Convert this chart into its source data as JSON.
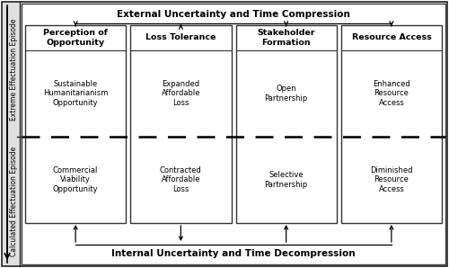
{
  "figsize": [
    5.0,
    2.98
  ],
  "dpi": 100,
  "bg_outer": "#d8d8d8",
  "bg_inner": "#ffffff",
  "bg_lower": "#e8e8e8",
  "top_label": "External Uncertainty and Time Compression",
  "bottom_label": "Internal Uncertainty and Time Decompression",
  "left_label_top": "Extreme Effectuation Episode",
  "left_label_bottom": "Calculated Effectuation Episode",
  "boxes": [
    {
      "title": "Perception of\nOpportunity",
      "top_text": "Sustainable\nHumanitarianism\nOpportunity",
      "bottom_text": "Commercial\nViability\nOpportunity"
    },
    {
      "title": "Loss Tolerance",
      "top_text": "Expanded\nAffordable\nLoss",
      "bottom_text": "Contracted\nAffordable\nLoss"
    },
    {
      "title": "Stakeholder\nFormation",
      "top_text": "Open\nPartnership",
      "bottom_text": "Selective\nPartnership"
    },
    {
      "title": "Resource Access",
      "top_text": "Enhanced\nResource\nAccess",
      "bottom_text": "Diminished\nResource\nAccess"
    }
  ],
  "arrow_top_connections": [
    {
      "from": 0,
      "direction": "down"
    },
    {
      "from": 1,
      "direction": "up"
    },
    {
      "from": 2,
      "direction": "down"
    },
    {
      "from": 3,
      "direction": "down"
    }
  ],
  "arrow_bot_connections": [
    {
      "from": 0,
      "direction": "up"
    },
    {
      "from": 1,
      "direction": "down"
    },
    {
      "from": 2,
      "direction": "up"
    },
    {
      "from": 3,
      "direction": "up"
    }
  ]
}
